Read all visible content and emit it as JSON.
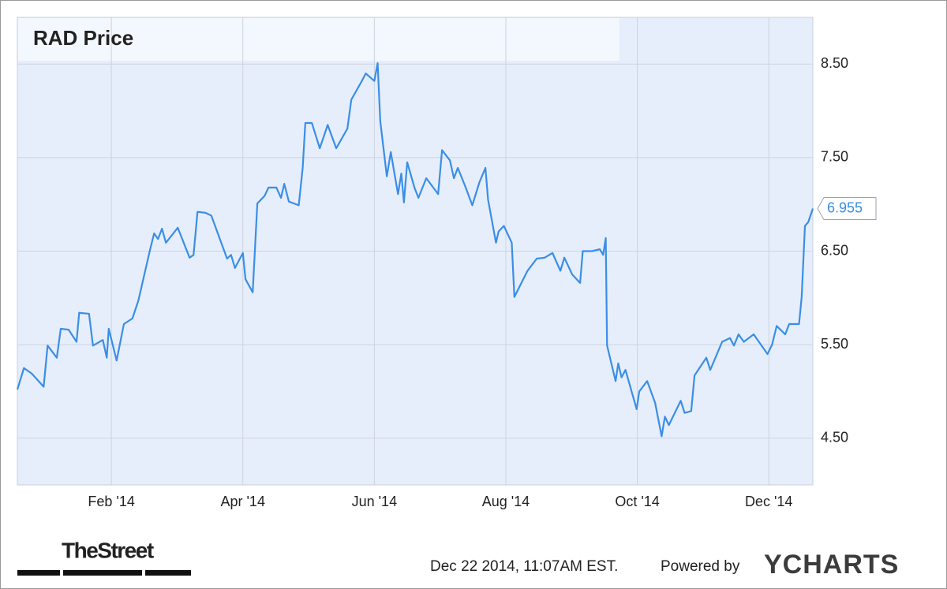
{
  "chart_data": {
    "type": "line",
    "title": "RAD Price",
    "logo": "TheStreet",
    "timestamp": "Dec 22 2014, 11:07AM EST.",
    "powered_by": "Powered by",
    "brand": "YCHARTS",
    "grid": true,
    "xlim": [
      -0.43,
      11.67
    ],
    "xticks": [
      {
        "value": 1,
        "label": "Feb '14"
      },
      {
        "value": 3,
        "label": "Apr '14"
      },
      {
        "value": 5,
        "label": "Jun '14"
      },
      {
        "value": 7,
        "label": "Aug '14"
      },
      {
        "value": 9,
        "label": "Oct '14"
      },
      {
        "value": 11,
        "label": "Dec '14"
      }
    ],
    "ylim": [
      4,
      9
    ],
    "yticks": [
      {
        "value": 4.5,
        "label": "4.50"
      },
      {
        "value": 5.5,
        "label": "5.50"
      },
      {
        "value": 6.5,
        "label": "6.50"
      },
      {
        "value": 7.5,
        "label": "7.50"
      },
      {
        "value": 8.5,
        "label": "8.50"
      }
    ],
    "x": [
      -0.43,
      -0.33,
      -0.21,
      -0.03,
      0.03,
      0.17,
      0.23,
      0.35,
      0.47,
      0.51,
      0.66,
      0.72,
      0.87,
      0.93,
      0.96,
      1.08,
      1.19,
      1.32,
      1.41,
      1.59,
      1.65,
      1.71,
      1.77,
      1.83,
      2.01,
      2.19,
      2.25,
      2.31,
      2.43,
      2.52,
      2.64,
      2.76,
      2.82,
      2.88,
      3.0,
      3.04,
      3.15,
      3.22,
      3.33,
      3.39,
      3.51,
      3.58,
      3.63,
      3.7,
      3.85,
      3.91,
      3.95,
      4.05,
      4.17,
      4.29,
      4.42,
      4.59,
      4.65,
      4.81,
      4.87,
      5.0,
      5.05,
      5.09,
      5.19,
      5.25,
      5.36,
      5.41,
      5.45,
      5.5,
      5.61,
      5.67,
      5.79,
      5.97,
      6.03,
      6.15,
      6.21,
      6.27,
      6.39,
      6.49,
      6.6,
      6.69,
      6.73,
      6.85,
      6.89,
      6.97,
      7.09,
      7.13,
      7.33,
      7.47,
      7.59,
      7.71,
      7.83,
      7.89,
      8.01,
      8.13,
      8.17,
      8.31,
      8.43,
      8.48,
      8.52,
      8.54,
      8.67,
      8.71,
      8.76,
      8.82,
      8.99,
      9.03,
      9.15,
      9.27,
      9.37,
      9.42,
      9.48,
      9.66,
      9.72,
      9.82,
      9.87,
      10.05,
      10.11,
      10.29,
      10.41,
      10.47,
      10.54,
      10.62,
      10.77,
      10.98,
      11.05,
      11.12,
      11.25,
      11.31,
      11.46,
      11.5,
      11.55,
      11.6,
      11.67
    ],
    "series": [
      {
        "color": "#3a8ee6",
        "values": [
          5.02,
          5.25,
          5.19,
          5.05,
          5.49,
          5.36,
          5.67,
          5.66,
          5.53,
          5.84,
          5.83,
          5.49,
          5.55,
          5.36,
          5.67,
          5.33,
          5.72,
          5.78,
          5.97,
          6.52,
          6.69,
          6.63,
          6.74,
          6.59,
          6.75,
          6.43,
          6.46,
          6.92,
          6.91,
          6.88,
          6.65,
          6.42,
          6.46,
          6.32,
          6.48,
          6.2,
          6.06,
          7.01,
          7.09,
          7.18,
          7.18,
          7.07,
          7.22,
          7.03,
          6.99,
          7.39,
          7.87,
          7.87,
          7.6,
          7.85,
          7.6,
          7.81,
          8.12,
          8.32,
          8.4,
          8.32,
          8.51,
          7.89,
          7.3,
          7.56,
          7.11,
          7.33,
          7.02,
          7.45,
          7.18,
          7.07,
          7.28,
          7.11,
          7.58,
          7.47,
          7.28,
          7.39,
          7.18,
          6.99,
          7.24,
          7.39,
          7.05,
          6.59,
          6.71,
          6.77,
          6.59,
          6.01,
          6.29,
          6.42,
          6.43,
          6.48,
          6.29,
          6.43,
          6.25,
          6.16,
          6.5,
          6.5,
          6.52,
          6.46,
          6.64,
          5.49,
          5.11,
          5.3,
          5.15,
          5.23,
          4.81,
          5.0,
          5.11,
          4.88,
          4.52,
          4.73,
          4.64,
          4.9,
          4.77,
          4.79,
          5.17,
          5.36,
          5.23,
          5.53,
          5.57,
          5.49,
          5.61,
          5.53,
          5.61,
          5.4,
          5.5,
          5.7,
          5.61,
          5.72,
          5.72,
          6.01,
          6.77,
          6.81,
          6.955
        ]
      }
    ]
  }
}
